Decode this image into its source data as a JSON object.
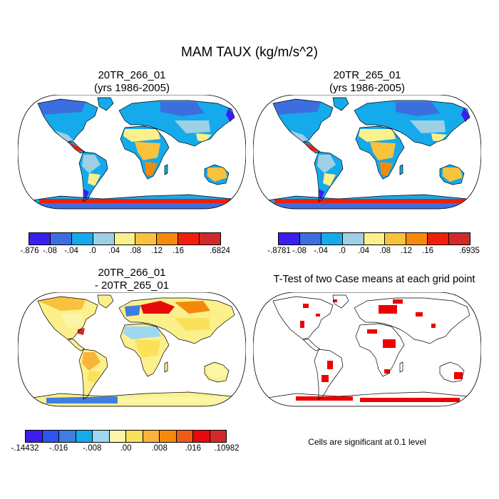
{
  "figure": {
    "title": "MAM TAUX (kg/m/s^2)",
    "note": "Cells are significant at 0.1 level"
  },
  "panels": {
    "top_left": {
      "title_line1": "20TR_266_01",
      "title_line2": "(yrs 1986-2005)"
    },
    "top_right": {
      "title_line1": "20TR_265_01",
      "title_line2": "(yrs 1986-2005)"
    },
    "bottom_left": {
      "title_line1": "20TR_266_01",
      "title_line2": "- 20TR_265_01"
    },
    "bottom_right": {
      "title_line1": "T-Test of two Case means at each grid point"
    }
  },
  "colorbars": {
    "top_left": {
      "colors": [
        "#3b1ef0",
        "#3d6ee0",
        "#14aaec",
        "#9ecfe4",
        "#fbf08c",
        "#f9c23c",
        "#f58a0a",
        "#f01e0a",
        "#d22a2a"
      ],
      "labels": [
        "-.876",
        "-.08",
        "-.04",
        ".0",
        ".04",
        ".08",
        ".12",
        ".16",
        ".6824"
      ]
    },
    "top_right": {
      "colors": [
        "#3b1ef0",
        "#3d6ee0",
        "#14aaec",
        "#9ecfe4",
        "#fbf08c",
        "#f9c23c",
        "#f58a0a",
        "#f01e0a",
        "#d22a2a"
      ],
      "labels": [
        "-.8781",
        "-.08",
        "-.04",
        ".0",
        ".04",
        ".08",
        ".12",
        ".16",
        ".6935"
      ]
    },
    "bottom_left": {
      "colors": [
        "#3b1ef0",
        "#2c55f0",
        "#3d7ee0",
        "#14aaec",
        "#9ed8f0",
        "#fbf5a8",
        "#fbe05a",
        "#f9b43c",
        "#f58a0a",
        "#f05a14",
        "#e80a0a",
        "#d22a2a"
      ],
      "labels": [
        "-.14432",
        "-.016",
        "-.008",
        ".00",
        ".008",
        ".016",
        ".10982"
      ]
    }
  },
  "colors": {
    "significance": "#ee0000",
    "ocean": "#ffffff",
    "coast": "#000000"
  }
}
